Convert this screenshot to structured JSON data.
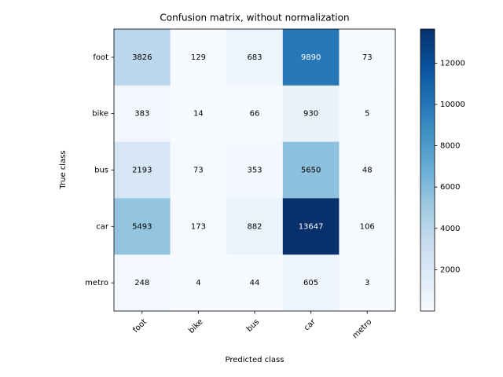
{
  "chart_data": {
    "type": "heatmap",
    "title": "Confusion matrix, without normalization",
    "xlabel": "Predicted class",
    "ylabel": "True class",
    "x_categories": [
      "foot",
      "bike",
      "bus",
      "car",
      "metro"
    ],
    "y_categories": [
      "foot",
      "bike",
      "bus",
      "car",
      "metro"
    ],
    "values": [
      [
        3826,
        129,
        683,
        9890,
        73
      ],
      [
        383,
        14,
        66,
        930,
        5
      ],
      [
        2193,
        73,
        353,
        5650,
        48
      ],
      [
        5493,
        173,
        882,
        13647,
        106
      ],
      [
        248,
        4,
        44,
        605,
        3
      ]
    ],
    "colormap": [
      "#f7fbff",
      "#deebf7",
      "#c6dbef",
      "#9ecae1",
      "#6baed6",
      "#4292c6",
      "#2171b5",
      "#08519c",
      "#08306b"
    ],
    "zlim": [
      3,
      13647
    ],
    "zticks": [
      2000,
      4000,
      6000,
      8000,
      10000,
      12000
    ]
  }
}
